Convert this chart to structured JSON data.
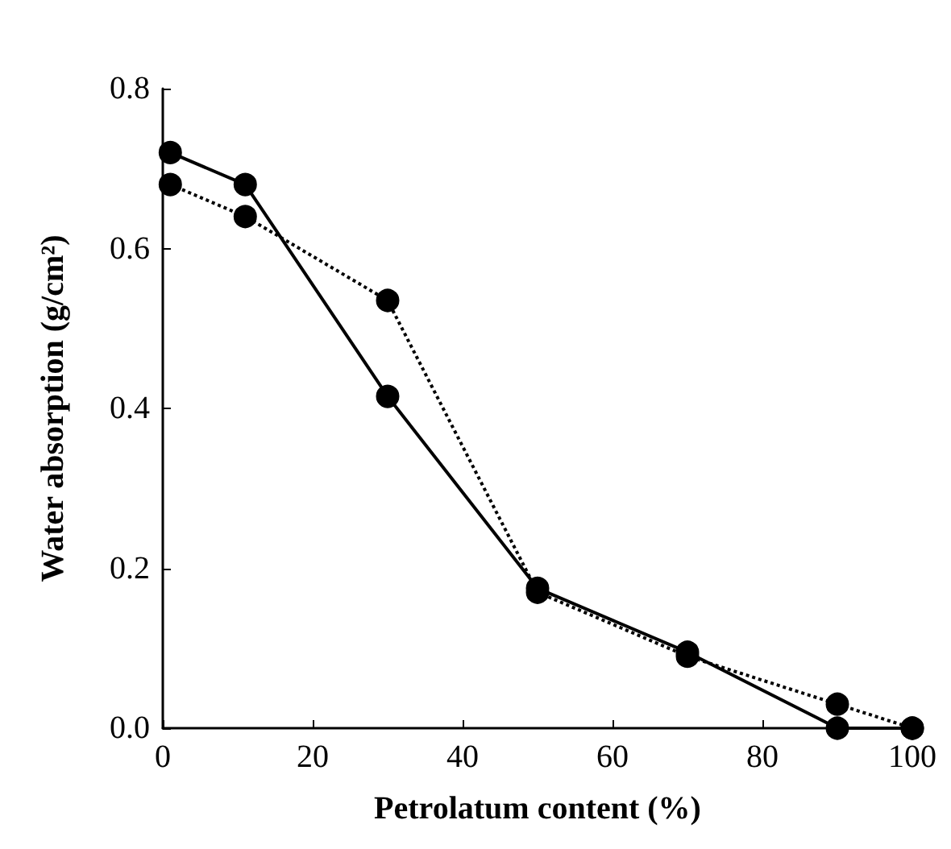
{
  "chart_data": {
    "type": "line",
    "xlabel": "Petrolatum content (%)",
    "ylabel": "Water absorption (g/cm²)",
    "xlim": [
      0,
      100
    ],
    "xticks": [
      0,
      20,
      40,
      60,
      80,
      100
    ],
    "ylim": [
      0,
      0.8
    ],
    "yticks": [
      {
        "value": 0,
        "label": "0.0"
      },
      {
        "value": 0.2,
        "label": "0.2"
      },
      {
        "value": 0.4,
        "label": "0.4"
      },
      {
        "value": 0.6,
        "label": "0.6"
      },
      {
        "value": 0.8,
        "label": "0.8"
      }
    ],
    "grid": false,
    "marker": "circle",
    "series": [
      {
        "color": "#000000",
        "line_style": "solid",
        "x": [
          1,
          11,
          30,
          50,
          70,
          90,
          100
        ],
        "values": [
          0.72,
          0.68,
          0.415,
          0.175,
          0.095,
          0.0,
          0.0
        ]
      },
      {
        "color": "#000000",
        "line_style": "dotted",
        "x": [
          1,
          11,
          30,
          50,
          70,
          90,
          100
        ],
        "values": [
          0.68,
          0.64,
          0.535,
          0.17,
          0.09,
          0.03,
          0.0
        ]
      }
    ]
  }
}
